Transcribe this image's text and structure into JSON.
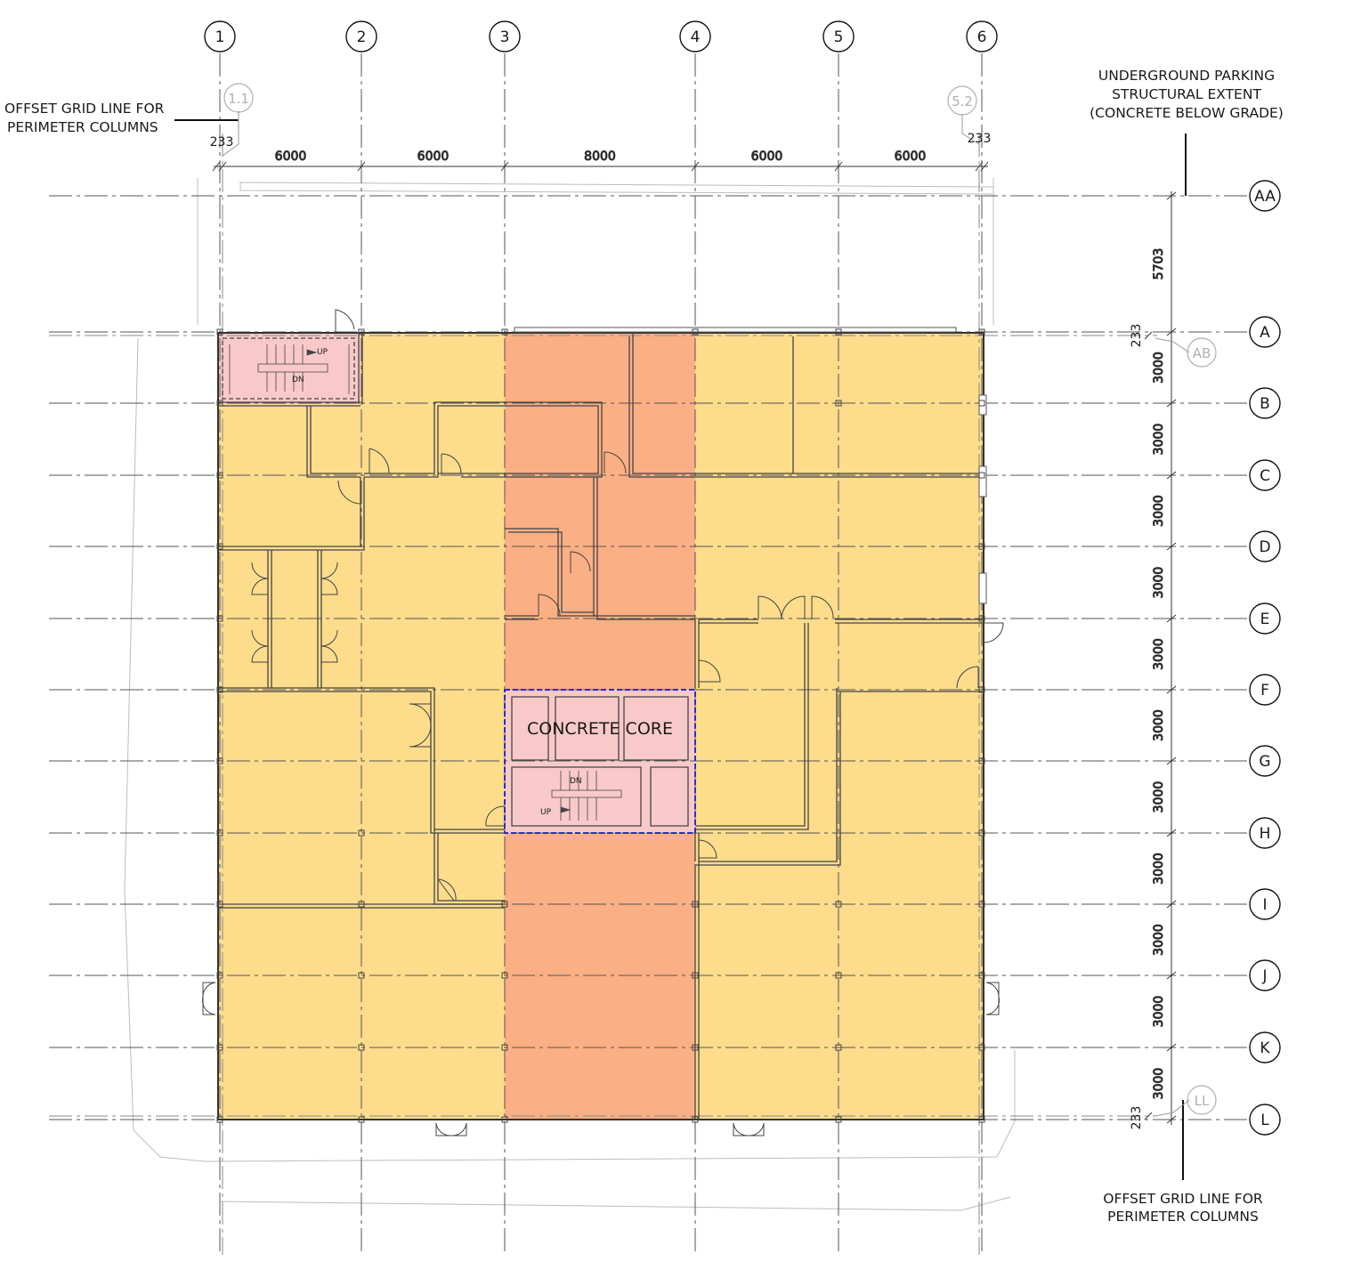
{
  "grid": {
    "columns": [
      "1",
      "2",
      "3",
      "4",
      "5",
      "6"
    ],
    "rows": [
      "AA",
      "A",
      "B",
      "C",
      "D",
      "E",
      "F",
      "G",
      "H",
      "I",
      "J",
      "K",
      "L"
    ],
    "offset_columns": [
      "1.1",
      "5.2"
    ],
    "offset_rows": [
      "AB",
      "LL"
    ]
  },
  "dimensions": {
    "column_spacings": [
      "6000",
      "6000",
      "8000",
      "6000",
      "6000"
    ],
    "row_spacings": [
      "5703",
      "3000",
      "3000",
      "3000",
      "3000",
      "3000",
      "3000",
      "3000",
      "3000",
      "3000",
      "3000",
      "3000"
    ],
    "offset_left": "233",
    "offset_right": "233",
    "offset_top": "233",
    "offset_bottom": "233"
  },
  "notes": {
    "offset_left_line1": "OFFSET GRID LINE FOR",
    "offset_left_line2": "PERIMETER COLUMNS",
    "parking_line1": "UNDERGROUND PARKING",
    "parking_line2": "STRUCTURAL EXTENT",
    "parking_line3": "(CONCRETE BELOW GRADE)",
    "offset_bottom_line1": "OFFSET GRID LINE FOR",
    "offset_bottom_line2": "PERIMETER COLUMNS"
  },
  "labels": {
    "core": "CONCRETE CORE",
    "stair_nw_up": "UP",
    "stair_nw_dn": "DN",
    "stair_core_dn": "DN",
    "stair_core_up": "UP"
  },
  "colors": {
    "floor_fill": "#fddc8c",
    "corridor_fill": "#fbaf84",
    "core_fill": "#f9c9c9",
    "core_outline": "#2530c8",
    "grid_line": "#555555",
    "wall": "#444444"
  }
}
